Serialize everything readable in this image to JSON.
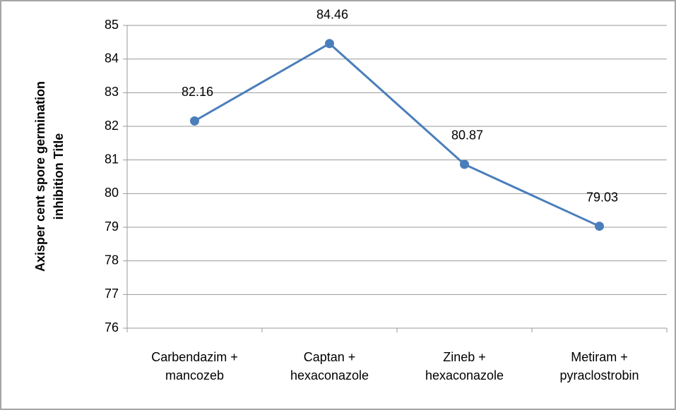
{
  "chart_data": {
    "type": "line",
    "y_label": "Axisper cent spore germination inhibition Title",
    "categories": [
      "Carbendazim + mancozeb",
      "Captan + hexaconazole",
      "Zineb + hexaconazole",
      "Metiram + pyraclostrobin"
    ],
    "series": [
      {
        "name": "Per cent spore germination inhibition",
        "color": "#4a7ebb",
        "values": [
          82.16,
          84.46,
          80.87,
          79.03
        ]
      }
    ],
    "ylim": [
      76,
      85
    ],
    "yticks": [
      76,
      77,
      78,
      79,
      80,
      81,
      82,
      83,
      84,
      85
    ],
    "grid": true
  }
}
